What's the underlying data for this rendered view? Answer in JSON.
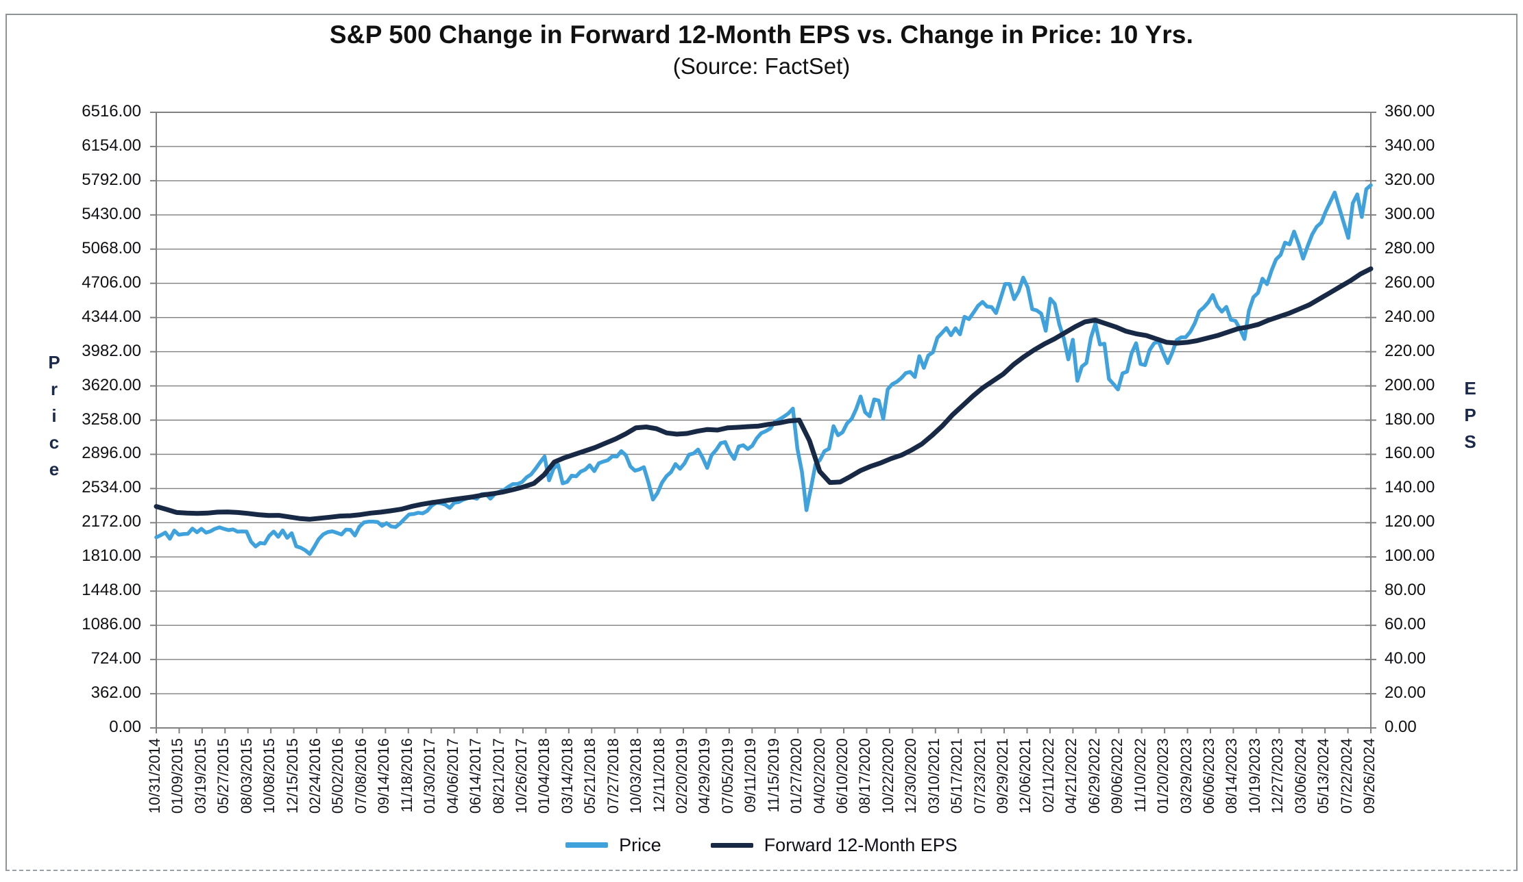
{
  "header": {
    "title": "S&P 500 Change in Forward 12-Month EPS vs. Change in Price: 10 Yrs.",
    "subtitle": "(Source: FactSet)"
  },
  "colors": {
    "price_line": "#3FA2DC",
    "eps_line": "#172945",
    "gridline": "#7f7f7f",
    "plot_border": "#808080",
    "text": "#111111"
  },
  "chart_data": {
    "type": "line",
    "title": "S&P 500 Change in Forward 12-Month EPS vs. Change in Price: 10 Yrs.",
    "subtitle": "(Source: FactSet)",
    "grid": "horizontal",
    "legend_position": "bottom",
    "y_left": {
      "title": "Price",
      "min": 0,
      "max": 6516,
      "step": 362,
      "tick_labels": [
        "6516.00",
        "6154.00",
        "5792.00",
        "5430.00",
        "5068.00",
        "4706.00",
        "4344.00",
        "3982.00",
        "3620.00",
        "3258.00",
        "2896.00",
        "2534.00",
        "2172.00",
        "1810.00",
        "1448.00",
        "1086.00",
        "724.00",
        "362.00",
        "0.00"
      ]
    },
    "y_right": {
      "title": "EPS",
      "min": 0,
      "max": 360,
      "step": 20,
      "tick_labels": [
        "360.00",
        "340.00",
        "320.00",
        "300.00",
        "280.00",
        "260.00",
        "240.00",
        "220.00",
        "200.00",
        "180.00",
        "160.00",
        "140.00",
        "120.00",
        "100.00",
        "80.00",
        "60.00",
        "40.00",
        "20.00",
        "0.00"
      ]
    },
    "x_axis": {
      "labels": [
        "10/31/2014",
        "01/09/2015",
        "03/19/2015",
        "05/27/2015",
        "08/03/2015",
        "10/08/2015",
        "12/15/2015",
        "02/24/2016",
        "05/02/2016",
        "07/08/2016",
        "09/14/2016",
        "11/18/2016",
        "01/30/2017",
        "04/06/2017",
        "06/14/2017",
        "08/21/2017",
        "10/26/2017",
        "01/04/2018",
        "03/14/2018",
        "05/21/2018",
        "07/27/2018",
        "10/03/2018",
        "12/11/2018",
        "02/20/2019",
        "04/29/2019",
        "07/05/2019",
        "09/11/2019",
        "11/15/2019",
        "01/27/2020",
        "04/02/2020",
        "06/10/2020",
        "08/17/2020",
        "10/22/2020",
        "12/30/2020",
        "03/10/2021",
        "05/17/2021",
        "07/23/2021",
        "09/29/2021",
        "12/06/2021",
        "02/11/2022",
        "04/21/2022",
        "06/29/2022",
        "09/06/2022",
        "11/10/2022",
        "01/20/2023",
        "03/29/2023",
        "06/06/2023",
        "08/14/2023",
        "10/19/2023",
        "12/27/2023",
        "03/06/2024",
        "05/13/2024",
        "07/22/2024",
        "09/26/2024"
      ]
    },
    "series": [
      {
        "name": "Price",
        "axis": "left",
        "color": "#3FA2DC",
        "stroke_width": 5.5,
        "values": [
          2018,
          2040,
          2068,
          2002,
          2089,
          2045,
          2052,
          2055,
          2110,
          2071,
          2108,
          2067,
          2081,
          2108,
          2123,
          2107,
          2094,
          2101,
          2077,
          2080,
          2078,
          1971,
          1921,
          1958,
          1951,
          2033,
          2079,
          2023,
          2090,
          2012,
          2061,
          1922,
          1907,
          1880,
          1840,
          1918,
          2000,
          2050,
          2073,
          2081,
          2065,
          2047,
          2099,
          2096,
          2037,
          2130,
          2175,
          2183,
          2184,
          2180,
          2139,
          2168,
          2133,
          2126,
          2164,
          2213,
          2260,
          2264,
          2277,
          2271,
          2297,
          2351,
          2383,
          2378,
          2363,
          2329,
          2384,
          2391,
          2416,
          2432,
          2438,
          2425,
          2473,
          2477,
          2426,
          2477,
          2500,
          2519,
          2553,
          2581,
          2582,
          2602,
          2652,
          2683,
          2743,
          2810,
          2873,
          2620,
          2747,
          2787,
          2588,
          2604,
          2670,
          2663,
          2713,
          2735,
          2780,
          2718,
          2801,
          2819,
          2833,
          2875,
          2872,
          2930,
          2886,
          2768,
          2723,
          2736,
          2760,
          2600,
          2417,
          2486,
          2596,
          2665,
          2708,
          2793,
          2743,
          2801,
          2893,
          2905,
          2946,
          2860,
          2752,
          2887,
          2942,
          3014,
          3026,
          2919,
          2847,
          2979,
          2992,
          2952,
          2986,
          3067,
          3120,
          3141,
          3169,
          3240,
          3265,
          3295,
          3328,
          3380,
          2954,
          2711,
          2305,
          2541,
          2790,
          2837,
          2930,
          2955,
          3194,
          3098,
          3130,
          3225,
          3271,
          3373,
          3508,
          3341,
          3298,
          3477,
          3465,
          3270,
          3585,
          3638,
          3663,
          3703,
          3756,
          3768,
          3714,
          3935,
          3811,
          3943,
          3975,
          4129,
          4180,
          4233,
          4156,
          4230,
          4166,
          4352,
          4327,
          4395,
          4468,
          4509,
          4459,
          4455,
          4391,
          4545,
          4698,
          4698,
          4538,
          4621,
          4766,
          4663,
          4432,
          4419,
          4385,
          4204,
          4543,
          4488,
          4272,
          4123,
          3901,
          4109,
          3675,
          3825,
          3863,
          4130,
          4280,
          4058,
          4067,
          3693,
          3640,
          3583,
          3753,
          3771,
          3965,
          4072,
          3852,
          3840,
          3999,
          4071,
          4090,
          3970,
          3862,
          3971,
          4105,
          4134,
          4136,
          4192,
          4282,
          4410,
          4450,
          4505,
          4582,
          4464,
          4406,
          4457,
          4320,
          4309,
          4224,
          4117,
          4415,
          4559,
          4604,
          4755,
          4697,
          4840,
          4959,
          5006,
          5137,
          5117,
          5254,
          5123,
          4967,
          5100,
          5223,
          5305,
          5347,
          5465,
          5567,
          5667,
          5505,
          5346,
          5186,
          5554,
          5648,
          5408,
          5703,
          5745
        ]
      },
      {
        "name": "Forward 12-Month EPS",
        "axis": "right",
        "color": "#172945",
        "stroke_width": 7,
        "values": [
          129.5,
          127.8,
          126.0,
          125.6,
          125.4,
          125.6,
          126.2,
          126.3,
          126.0,
          125.4,
          124.7,
          124.2,
          124.3,
          123.4,
          122.5,
          122.0,
          122.6,
          123.2,
          123.9,
          124.1,
          124.7,
          125.6,
          126.2,
          127.0,
          127.9,
          129.5,
          130.8,
          131.8,
          132.6,
          133.5,
          134.3,
          135.1,
          136.2,
          137.0,
          138.0,
          139.4,
          141.0,
          143.0,
          148.0,
          155.5,
          158.0,
          160.0,
          162.0,
          164.0,
          166.5,
          169.0,
          172.0,
          175.5,
          176.0,
          175.0,
          172.5,
          171.8,
          172.2,
          173.5,
          174.5,
          174.2,
          175.5,
          175.8,
          176.2,
          176.5,
          177.5,
          178.3,
          179.5,
          180.0,
          168.0,
          150.0,
          143.5,
          143.8,
          147.0,
          150.5,
          153.0,
          155.0,
          157.5,
          159.5,
          162.5,
          166.0,
          171.0,
          176.5,
          183.0,
          188.5,
          194.0,
          199.0,
          203.0,
          207.0,
          212.5,
          217.0,
          221.0,
          224.5,
          227.5,
          231.0,
          234.5,
          237.5,
          238.5,
          236.5,
          234.5,
          232.0,
          230.5,
          229.5,
          227.5,
          225.5,
          225.0,
          225.5,
          226.5,
          228.0,
          229.5,
          231.5,
          233.5,
          234.5,
          236.0,
          238.5,
          240.5,
          242.5,
          245.0,
          247.5,
          251.0,
          254.5,
          258.0,
          261.5,
          265.5,
          268.5
        ]
      }
    ]
  }
}
